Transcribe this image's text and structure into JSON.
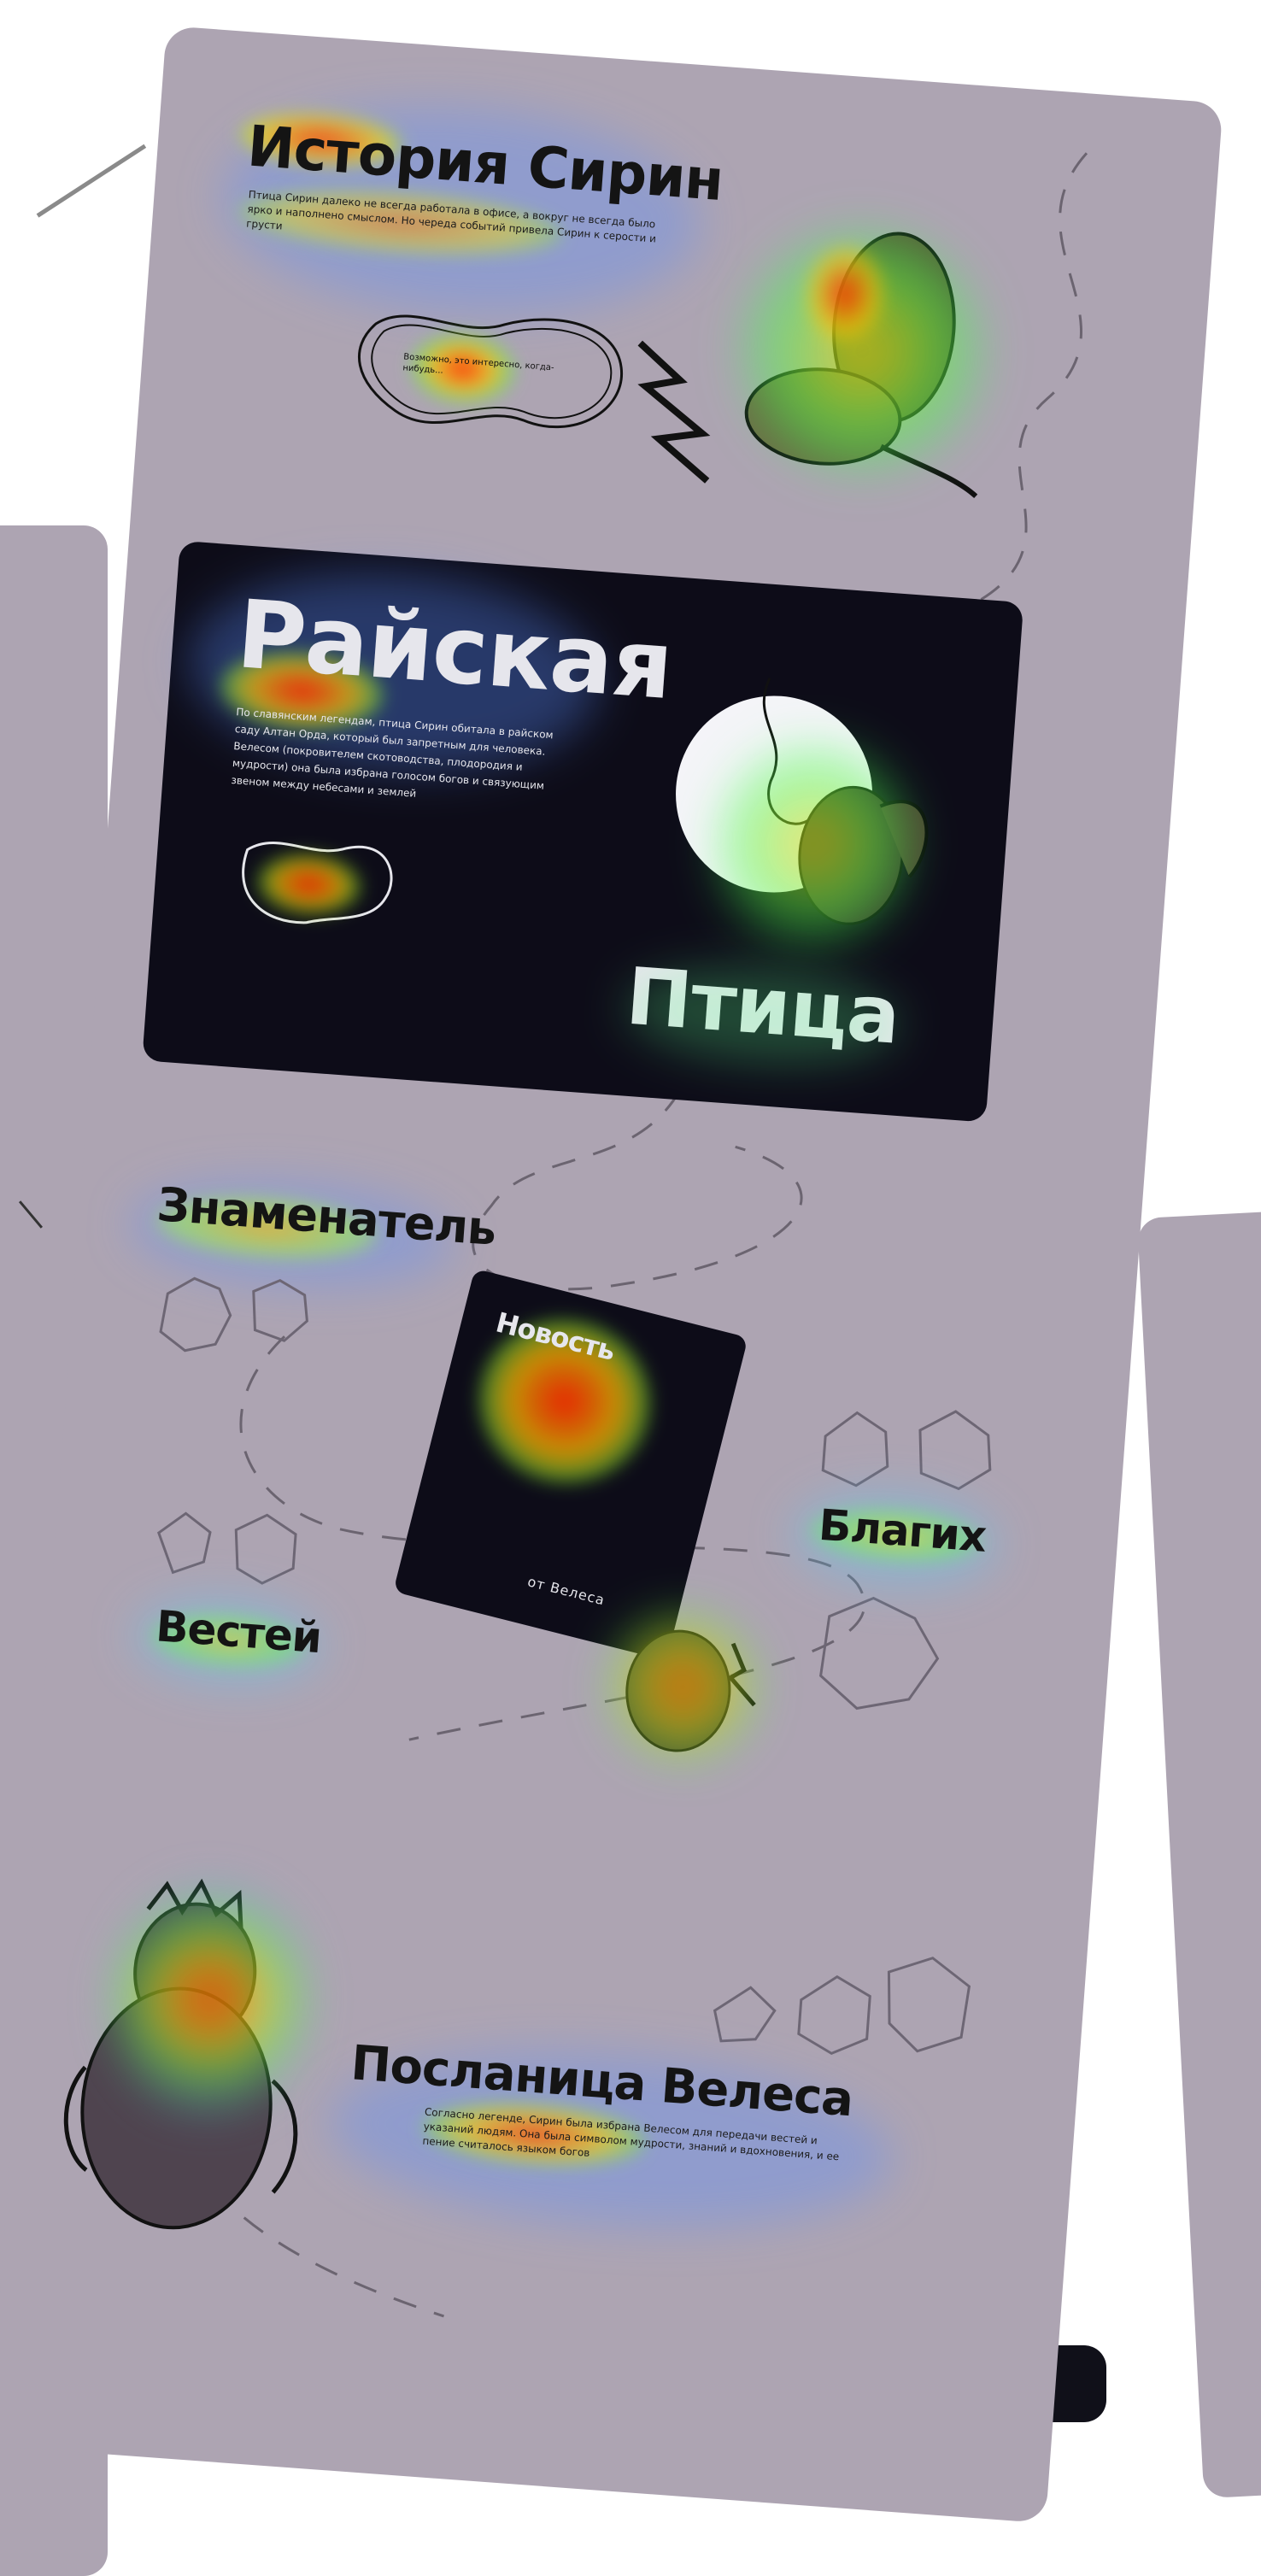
{
  "story": {
    "title": "История Сирин",
    "intro": "Птица Сирин далеко не всегда работала в офисе, а вокруг не всегда было ярко и наполнено смыслом. Но череда событий привела Сирин к серости и грусти",
    "speech": "Возможно, это интересно, когда-нибудь..."
  },
  "card1": {
    "title_top": "Райская",
    "title_bottom": "Птица",
    "body": "По славянским легендам, птица Сирин обитала в райском саду Алтан Орда, который был запретным для человека. Велесом (покровителем скотоводства, плодородия и мудрости) она была избрана голосом богов и связующим звеном между небесами и землей"
  },
  "card2": {
    "heading": "Знаменатель",
    "card_title": "Новость",
    "card_sign": "от Велеса",
    "left_label": "Вестей",
    "right_label": "Благих"
  },
  "section3": {
    "title": "Посланица Велеса",
    "body": "Согласно легенде, Сирин была избрана Велесом для передачи вестей и указаний людям. Она была символом мудрости, знаний и вдохновения, и ее пение считалось языком богов"
  },
  "colors": {
    "board": "#ada4b2",
    "dark_card": "#0d0c18",
    "text": "#141414",
    "heat_hot": "#ff2a00",
    "heat_warm": "#ffe600",
    "heat_cool": "#3cff4a"
  },
  "icons": [
    "sirin-bird",
    "speech-bubble",
    "moon",
    "star-creature",
    "veles-creature"
  ]
}
